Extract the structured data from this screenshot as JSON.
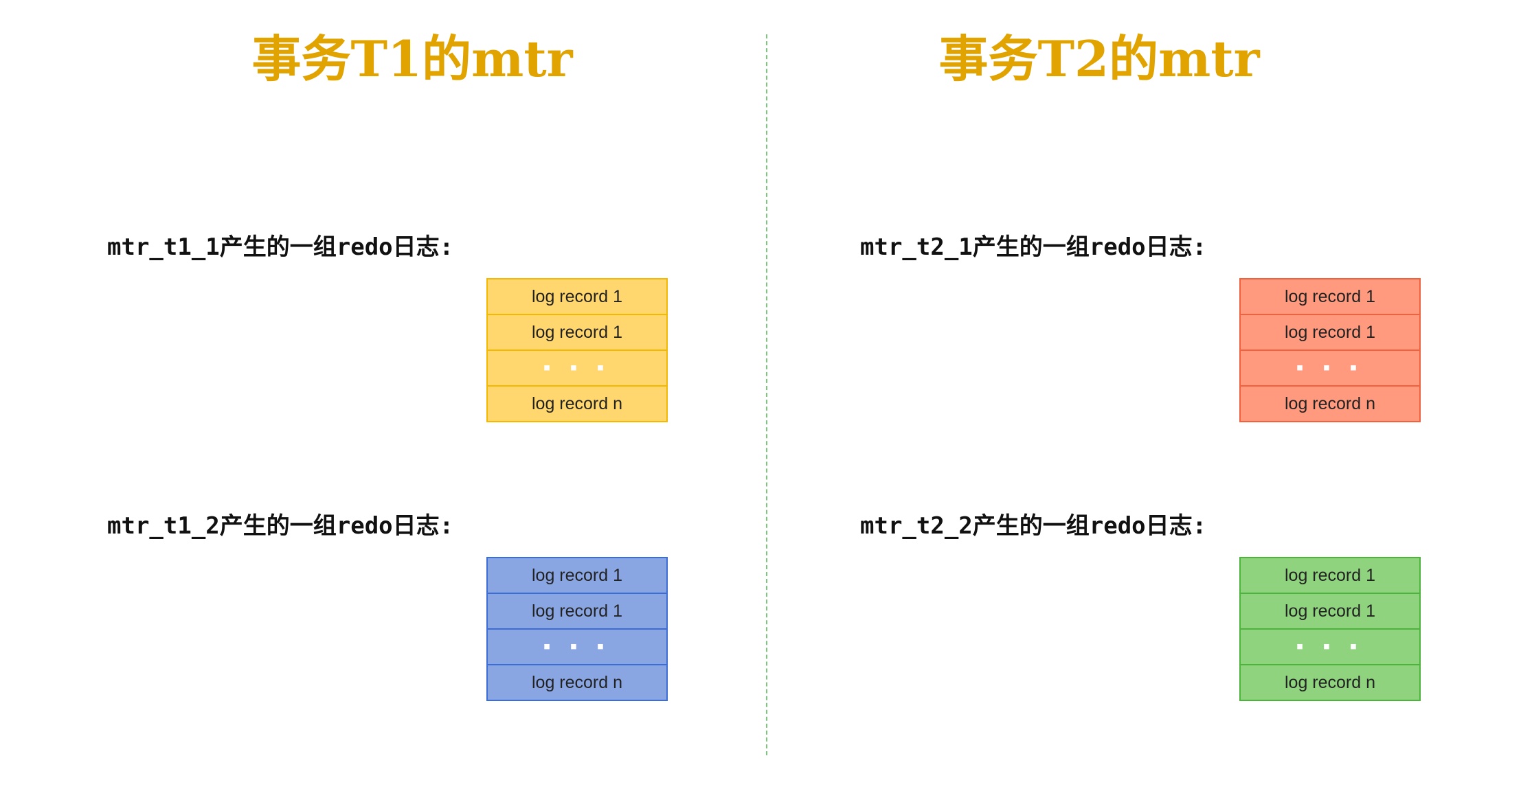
{
  "colors": {
    "title": "#e0a300",
    "yellow_fill": "#ffd76e",
    "yellow_border": "#f5b800",
    "blue_fill": "#89a6e3",
    "blue_border": "#3c6dd6",
    "red_fill": "#ff9a7e",
    "red_border": "#f0623e",
    "green_fill": "#8fd37f",
    "green_border": "#4cb43a",
    "divider": "#7cc77c"
  },
  "left": {
    "title": "事务T1的mtr",
    "groups": [
      {
        "label": "mtr_t1_1产生的一组redo日志:",
        "records": [
          "log record 1",
          "log record 1",
          "▪ ▪ ▪",
          "log record n"
        ]
      },
      {
        "label": "mtr_t1_2产生的一组redo日志:",
        "records": [
          "log record 1",
          "log record 1",
          "▪ ▪ ▪",
          "log record n"
        ]
      }
    ]
  },
  "right": {
    "title": "事务T2的mtr",
    "groups": [
      {
        "label": "mtr_t2_1产生的一组redo日志:",
        "records": [
          "log record 1",
          "log record 1",
          "▪ ▪ ▪",
          "log record n"
        ]
      },
      {
        "label": "mtr_t2_2产生的一组redo日志:",
        "records": [
          "log record 1",
          "log record 1",
          "▪ ▪ ▪",
          "log record n"
        ]
      }
    ]
  }
}
